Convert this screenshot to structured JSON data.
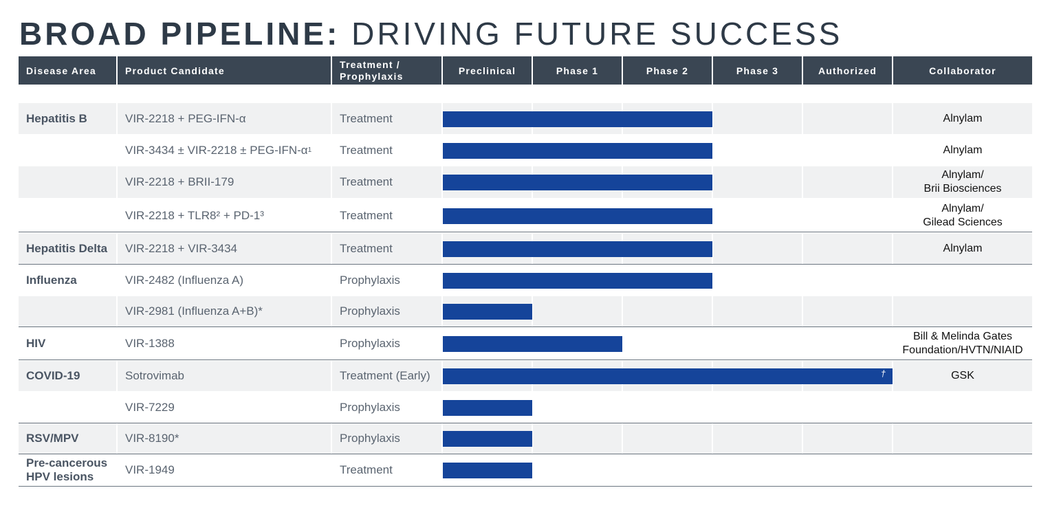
{
  "title": {
    "bold": "BROAD PIPELINE:",
    "light": "DRIVING FUTURE SUCCESS"
  },
  "headers": {
    "disease_area": "Disease Area",
    "product_candidate": "Product Candidate",
    "treatment_line1": "Treatment /",
    "treatment_line2": "Prophylaxis",
    "preclinical": "Preclinical",
    "phase1": "Phase 1",
    "phase2": "Phase 2",
    "phase3": "Phase 3",
    "authorized": "Authorized",
    "collaborator": "Collaborator"
  },
  "chart_data": {
    "type": "bar",
    "stages": [
      "Preclinical",
      "Phase 1",
      "Phase 2",
      "Phase 3",
      "Authorized"
    ],
    "rows": [
      {
        "disease": "Hepatitis B",
        "product": "VIR-2218 + PEG-IFN-α",
        "sup": "",
        "use": "Treatment",
        "stage_reached": 3,
        "collaborator": [
          "Alnylam"
        ]
      },
      {
        "disease": "",
        "product": "VIR-3434 ± VIR-2218 ± PEG-IFN-α",
        "sup": "1",
        "use": "Treatment",
        "stage_reached": 3,
        "collaborator": [
          "Alnylam"
        ]
      },
      {
        "disease": "",
        "product": "VIR-2218 + BRII-179",
        "sup": "",
        "use": "Treatment",
        "stage_reached": 3,
        "collaborator": [
          "Alnylam/",
          "Brii Biosciences"
        ]
      },
      {
        "disease": "",
        "product": "VIR-2218 + TLR8² + PD-1³",
        "sup": "",
        "use": "Treatment",
        "stage_reached": 3,
        "collaborator": [
          "Alnylam/",
          "Gilead Sciences"
        ]
      },
      {
        "disease": "Hepatitis Delta",
        "product": "VIR-2218 + VIR-3434",
        "sup": "",
        "use": "Treatment",
        "stage_reached": 3,
        "collaborator": [
          "Alnylam"
        ]
      },
      {
        "disease": "Influenza",
        "product": "VIR-2482 (Influenza A)",
        "sup": "",
        "use": "Prophylaxis",
        "stage_reached": 3,
        "collaborator": []
      },
      {
        "disease": "",
        "product": "VIR-2981 (Influenza A+B)*",
        "sup": "",
        "use": "Prophylaxis",
        "stage_reached": 1,
        "collaborator": []
      },
      {
        "disease": "HIV",
        "product": "VIR-1388",
        "sup": "",
        "use": "Prophylaxis",
        "stage_reached": 2,
        "collaborator": [
          "Bill & Melinda Gates",
          "Foundation/HVTN/NIAID"
        ]
      },
      {
        "disease": "COVID-19",
        "product": "Sotrovimab",
        "sup": "",
        "use": "Treatment (Early)",
        "stage_reached": 5,
        "marker": "†",
        "collaborator": [
          "GSK"
        ]
      },
      {
        "disease": "",
        "product": "VIR-7229",
        "sup": "",
        "use": "Prophylaxis",
        "stage_reached": 1,
        "collaborator": []
      },
      {
        "disease": "RSV/MPV",
        "product": "VIR-8190*",
        "sup": "",
        "use": "Prophylaxis",
        "stage_reached": 1,
        "collaborator": []
      },
      {
        "disease": "Pre-cancerous HPV lesions",
        "product": "VIR-1949",
        "sup": "",
        "use": "Treatment",
        "stage_reached": 1,
        "collaborator": []
      }
    ]
  }
}
